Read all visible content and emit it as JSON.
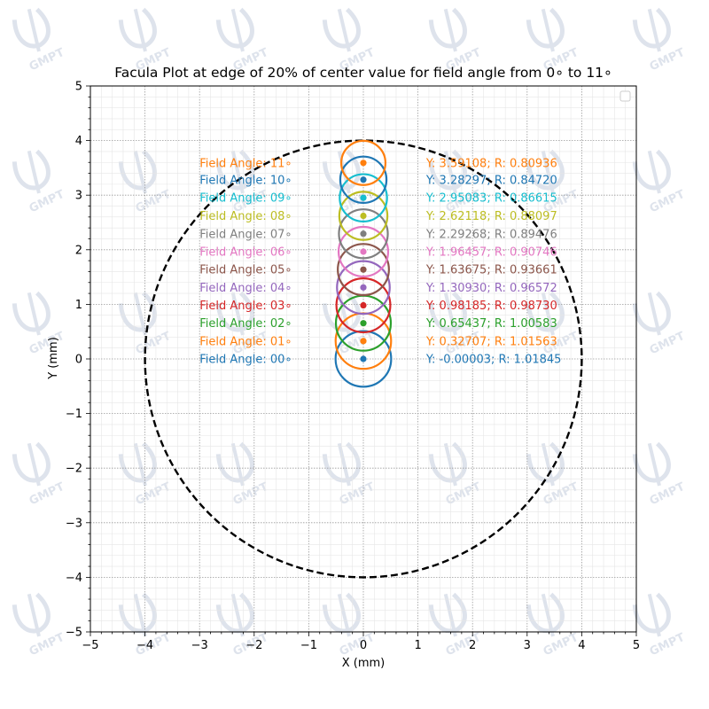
{
  "chart_data": {
    "type": "scatter",
    "title": "Facula Plot at edge of 20% of center value for field angle from 0∘ to 11∘",
    "xlabel": "X (mm)",
    "ylabel": "Y (mm)",
    "xlim": [
      -5,
      5
    ],
    "ylim": [
      -5,
      5
    ],
    "xticks": [
      "−5",
      "−4",
      "−3",
      "−2",
      "−1",
      "0",
      "1",
      "2",
      "3",
      "4",
      "5"
    ],
    "yticks": [
      "−5",
      "−4",
      "−3",
      "−2",
      "−1",
      "0",
      "1",
      "2",
      "3",
      "4",
      "5"
    ],
    "grid": true,
    "legend": "top-right",
    "boundary_circle": {
      "center": [
        0,
        0
      ],
      "radius": 4,
      "style": "dashed",
      "color": "#000000"
    },
    "series": [
      {
        "label": "Field Angle: 00∘",
        "x": 0,
        "y": -3e-05,
        "r": 1.01845,
        "info": "Y: -0.00003; R: 1.01845",
        "color": "#1f77b4"
      },
      {
        "label": "Field Angle: 01∘",
        "x": 0,
        "y": 0.32707,
        "r": 1.01563,
        "info": "Y: 0.32707; R: 1.01563",
        "color": "#ff7f0e"
      },
      {
        "label": "Field Angle: 02∘",
        "x": 0,
        "y": 0.65437,
        "r": 1.00583,
        "info": "Y: 0.65437; R: 1.00583",
        "color": "#2ca02c"
      },
      {
        "label": "Field Angle: 03∘",
        "x": 0,
        "y": 0.98185,
        "r": 0.9873,
        "info": "Y: 0.98185; R: 0.98730",
        "color": "#d62728"
      },
      {
        "label": "Field Angle: 04∘",
        "x": 0,
        "y": 1.3093,
        "r": 0.96572,
        "info": "Y: 1.30930; R: 0.96572",
        "color": "#9467bd"
      },
      {
        "label": "Field Angle: 05∘",
        "x": 0,
        "y": 1.63675,
        "r": 0.93661,
        "info": "Y: 1.63675; R: 0.93661",
        "color": "#8c564b"
      },
      {
        "label": "Field Angle: 06∘",
        "x": 0,
        "y": 1.96457,
        "r": 0.90746,
        "info": "Y: 1.96457; R: 0.90746",
        "color": "#e377c2"
      },
      {
        "label": "Field Angle: 07∘",
        "x": 0,
        "y": 2.29268,
        "r": 0.89476,
        "info": "Y: 2.29268; R: 0.89476",
        "color": "#7f7f7f"
      },
      {
        "label": "Field Angle: 08∘",
        "x": 0,
        "y": 2.62118,
        "r": 0.88097,
        "info": "Y: 2.62118; R: 0.88097",
        "color": "#bcbd22"
      },
      {
        "label": "Field Angle: 09∘",
        "x": 0,
        "y": 2.95083,
        "r": 0.86615,
        "info": "Y: 2.95083; R: 0.86615",
        "color": "#17becf"
      },
      {
        "label": "Field Angle: 10∘",
        "x": 0,
        "y": 3.28297,
        "r": 0.8472,
        "info": "Y: 3.28297; R: 0.84720",
        "color": "#1f77b4"
      },
      {
        "label": "Field Angle: 11∘",
        "x": 0,
        "y": 3.59108,
        "r": 0.80936,
        "info": "Y: 3.59108; R: 0.80936",
        "color": "#ff7f0e"
      }
    ]
  },
  "watermark": {
    "text": "GMPT",
    "color": "#b8c3d6"
  }
}
